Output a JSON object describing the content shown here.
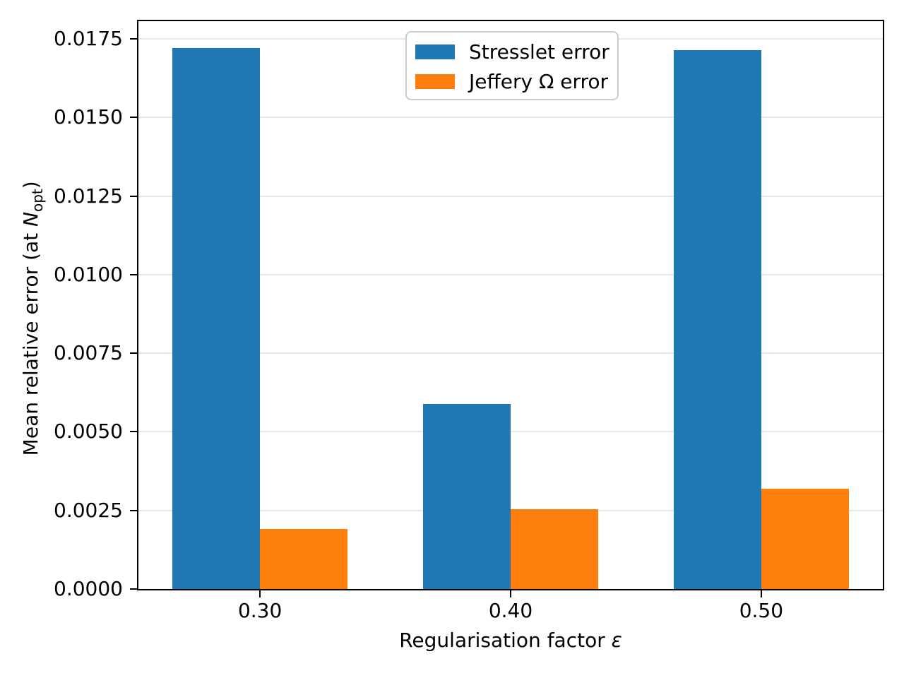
{
  "chart_data": {
    "type": "bar",
    "categories": [
      "0.30",
      "0.40",
      "0.50"
    ],
    "series": [
      {
        "name": "Stresslet error",
        "color": "#1f77b4",
        "values": [
          0.01721,
          0.00589,
          0.01714
        ]
      },
      {
        "name": "Jeffery Ω error",
        "color": "#ff7f0e",
        "values": [
          0.00191,
          0.00255,
          0.00319
        ]
      }
    ],
    "title": "",
    "xlabel": "Regularisation factor ε",
    "ylabel": "Mean relative error (at N_opt)",
    "ylim": [
      0,
      0.018066
    ],
    "yticks": [
      0.0,
      0.0025,
      0.005,
      0.0075,
      0.01,
      0.0125,
      0.015,
      0.0175
    ],
    "ytick_labels": [
      "0.0000",
      "0.0025",
      "0.0050",
      "0.0075",
      "0.0100",
      "0.0125",
      "0.0150",
      "0.0175"
    ],
    "grid": "horizontal",
    "gridline_color": "#e7e7e7",
    "legend_position": "upper center",
    "bar_width_fraction": 0.35
  },
  "labels": {
    "xlabel_text": "Regularisation factor ",
    "xlabel_symbol": "ε",
    "ylabel_prefix": "Mean relative error (at ",
    "ylabel_N": "N",
    "ylabel_sub": "opt",
    "ylabel_suffix": ")"
  },
  "legend": {
    "entries": [
      {
        "label": "Stresslet error",
        "color": "#1f77b4"
      },
      {
        "label": "Jeffery Ω error",
        "color": "#ff7f0e"
      }
    ]
  }
}
